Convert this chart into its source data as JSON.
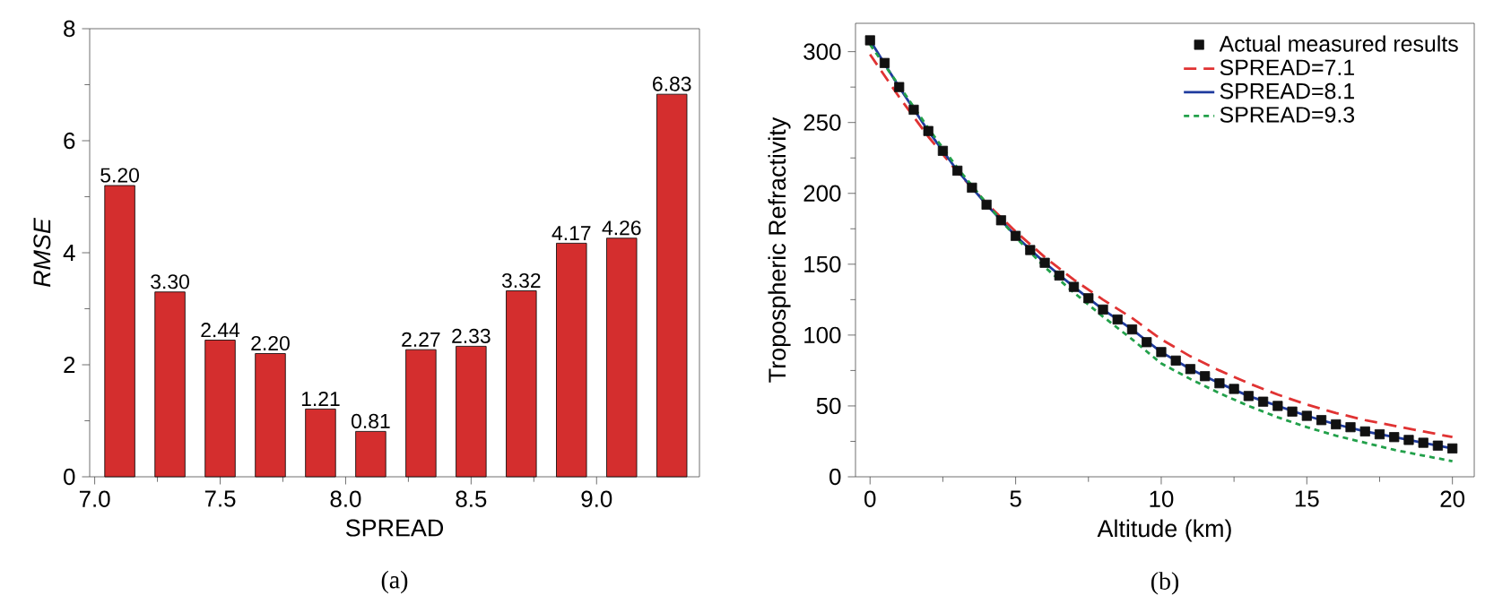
{
  "chart_data": [
    {
      "type": "bar",
      "xlabel": "SPREAD",
      "ylabel": "RMSE",
      "x": [
        7.1,
        7.3,
        7.5,
        7.7,
        7.9,
        8.1,
        8.3,
        8.5,
        8.7,
        8.9,
        9.1,
        9.3
      ],
      "values": [
        5.2,
        3.3,
        2.44,
        2.2,
        1.21,
        0.81,
        2.27,
        2.33,
        3.32,
        4.17,
        4.26,
        6.83
      ],
      "value_labels": [
        "5.20",
        "3.30",
        "2.44",
        "2.20",
        "1.21",
        "0.81",
        "2.27",
        "2.33",
        "3.32",
        "4.17",
        "4.26",
        "6.83"
      ],
      "color": "#d42e2e",
      "xlim": [
        6.98,
        9.41
      ],
      "xticks": [
        {
          "value": 7,
          "label": "7.0"
        },
        7.5,
        {
          "value": 8,
          "label": "8.0"
        },
        8.5,
        {
          "value": 9,
          "label": "9.0"
        }
      ],
      "ylim": [
        0,
        8
      ],
      "yticks": [
        0,
        2,
        4,
        6,
        8
      ],
      "annotations": [
        "(a)"
      ]
    },
    {
      "type": "line",
      "xlabel": "Altitude (km)",
      "ylabel": "Tropospheric Refractivity",
      "legend": "top right",
      "xlim": [
        -0.5,
        20.75
      ],
      "xticks": [
        0,
        5,
        10,
        15,
        20
      ],
      "ylim": [
        0,
        320
      ],
      "yticks": [
        0,
        50,
        100,
        150,
        200,
        250,
        300
      ],
      "series": [
        {
          "name": "Actual measured results",
          "type": "scatter",
          "marker": "square",
          "color": "#111111",
          "x": [
            0,
            0.5,
            1,
            1.5,
            2,
            2.5,
            3,
            3.5,
            4,
            4.5,
            5,
            5.5,
            6,
            6.5,
            7,
            7.5,
            8,
            8.5,
            9,
            9.5,
            10,
            10.5,
            11,
            11.5,
            12,
            12.5,
            13,
            13.5,
            14,
            14.5,
            15,
            15.5,
            16,
            16.5,
            17,
            17.5,
            18,
            18.5,
            19,
            19.5,
            20
          ],
          "values": [
            308,
            292,
            275,
            259,
            244,
            230,
            216,
            204,
            192,
            181,
            170,
            160,
            151,
            142,
            134,
            126,
            118,
            111,
            104,
            95,
            88,
            82,
            76,
            71,
            66,
            62,
            57,
            53,
            50,
            46,
            43,
            40,
            37,
            35,
            32,
            30,
            28,
            26,
            24,
            22,
            20
          ]
        },
        {
          "name": "SPREAD=7.1",
          "type": "line",
          "line_style": "dashed",
          "color": "#e03333",
          "x": [
            0,
            1,
            2,
            3,
            4,
            5,
            6,
            7,
            8,
            9,
            10,
            11,
            12,
            13,
            14,
            15,
            16,
            17,
            18,
            19,
            20
          ],
          "values": [
            298,
            268,
            240,
            215,
            193,
            173,
            155,
            139,
            125,
            112,
            97,
            85,
            75,
            66,
            58,
            51,
            45,
            40,
            36,
            32,
            28
          ]
        },
        {
          "name": "SPREAD=8.1",
          "type": "line",
          "line_style": "solid",
          "color": "#1f3b9e",
          "x": [
            0,
            1,
            2,
            3,
            4,
            5,
            6,
            7,
            8,
            9,
            10,
            11,
            12,
            13,
            14,
            15,
            16,
            17,
            18,
            19,
            20
          ],
          "values": [
            308,
            275,
            244,
            216,
            192,
            170,
            151,
            134,
            118,
            104,
            88,
            76,
            66,
            57,
            50,
            43,
            37,
            32,
            28,
            24,
            20
          ]
        },
        {
          "name": "SPREAD=9.3",
          "type": "line",
          "line_style": "dotted",
          "color": "#22a04a",
          "x": [
            0,
            1,
            2,
            3,
            4,
            5,
            6,
            7,
            8,
            9,
            10,
            11,
            12,
            13,
            14,
            15,
            16,
            17,
            18,
            19,
            20
          ],
          "values": [
            305,
            276,
            246,
            218,
            193,
            169,
            148,
            130,
            113,
            97,
            80,
            69,
            59,
            50,
            42,
            35,
            29,
            24,
            19,
            15,
            11
          ]
        }
      ],
      "annotations": [
        "(b)"
      ]
    }
  ]
}
